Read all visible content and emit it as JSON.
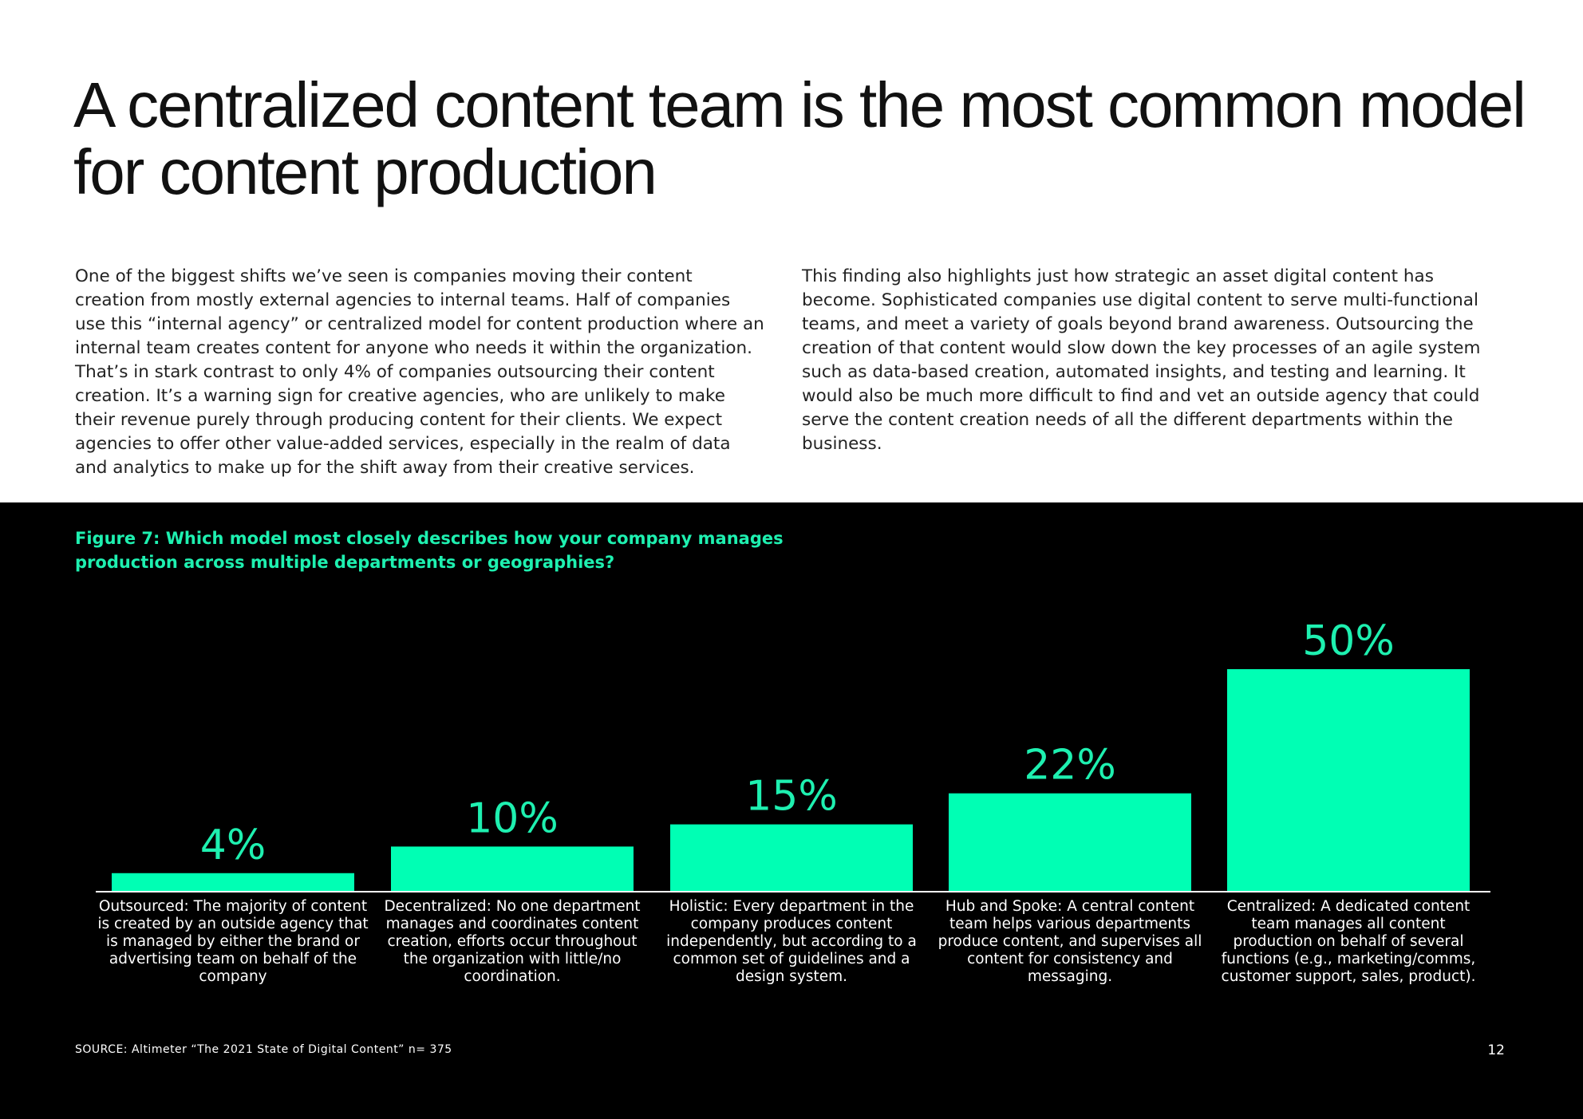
{
  "page": {
    "headline": "A centralized content team is the most common model\nfor content production",
    "paragraph_left": "One of the biggest shifts we’ve seen is companies moving their content creation from mostly external agencies to internal teams. Half of companies use this “internal agency” or centralized model for content production where an internal team creates content for anyone who needs it within the organization. That’s in stark contrast to only 4% of companies outsourcing their content creation. It’s a warning sign for creative agencies, who are unlikely to make their revenue purely through producing content for their clients. We expect agencies to offer other value-added services, especially in the realm of data and analytics to make up for the shift away from their creative services.",
    "paragraph_right": "This finding also highlights just how strategic an asset digital content has become. Sophisticated companies use digital content to serve multi-functional teams, and meet a variety of goals beyond brand awareness. Outsourcing the creation of that content would slow down the key processes of an agile system such as data-based creation, automated insights, and testing and learning. It would also be much more difficult to find and vet an outside agency that could serve the content creation needs of all the different departments within the business.",
    "source": "SOURCE: Altimeter “The 2021 State of Digital Content” n= 375",
    "page_number": "12"
  },
  "colors": {
    "accent": "#1ef0b0",
    "bar": "#00ffb4",
    "panel_background": "#000000",
    "page_background": "#ffffff"
  },
  "chart_data": {
    "type": "bar",
    "title": "Figure 7: Which model most closely describes how your company manages production across multiple departments or geographies?",
    "categories": [
      "Outsourced: The majority of content is created by an outside agency that is managed by either the brand or advertising team on behalf of the company",
      "Decentralized: No one department manages and coordinates content creation, efforts occur throughout the organization with little/no coordination.",
      "Holistic: Every department in the company produces content independently, but according to a common set of guidelines and a design system.",
      "Hub and Spoke: A central content team helps various departments produce content, and supervises all content for consistency and messaging.",
      "Centralized: A dedicated content team manages all content production on behalf of several functions (e.g., marketing/comms, customer support, sales, product)."
    ],
    "values": [
      4,
      10,
      15,
      22,
      50
    ],
    "value_labels": [
      "4%",
      "10%",
      "15%",
      "22%",
      "50%"
    ],
    "unit": "%",
    "ylim": [
      0,
      50
    ],
    "grid": false,
    "legend": "none"
  }
}
